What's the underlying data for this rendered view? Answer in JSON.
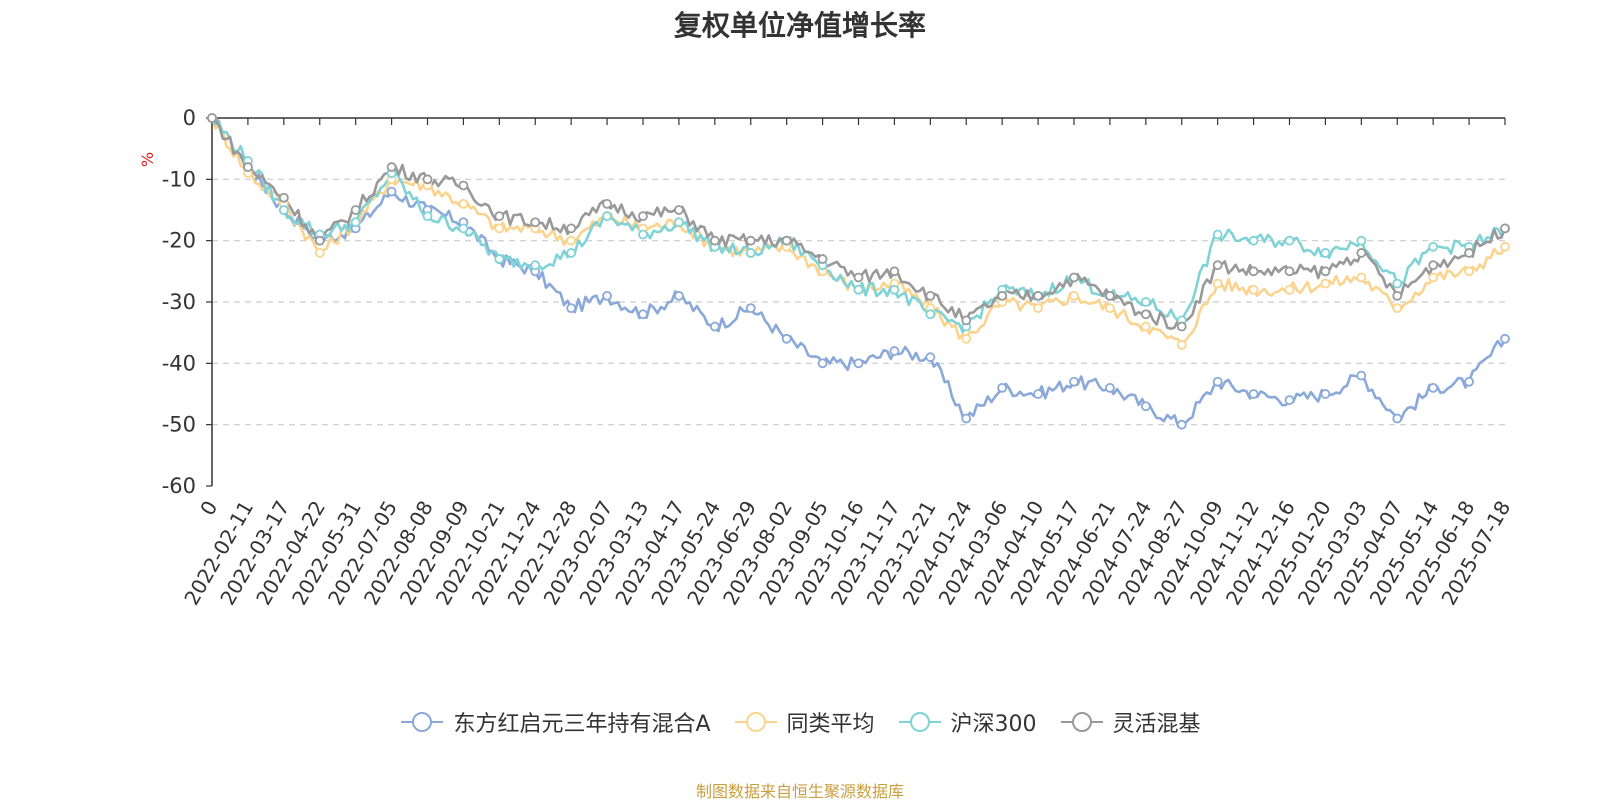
{
  "chart_data": {
    "type": "line",
    "title": "复权单位净值增长率",
    "ylabel": "%",
    "ylim": [
      -60,
      0
    ],
    "yticks": [
      0,
      -10,
      -20,
      -30,
      -40,
      -50,
      -60
    ],
    "grid": true,
    "legend_position": "bottom",
    "x": [
      "0",
      "2022-02-11",
      "2022-03-17",
      "2022-04-22",
      "2022-05-31",
      "2022-07-05",
      "2022-08-08",
      "2022-09-09",
      "2022-10-21",
      "2022-11-24",
      "2022-12-28",
      "2023-02-07",
      "2023-03-13",
      "2023-04-17",
      "2023-05-24",
      "2023-06-29",
      "2023-08-02",
      "2023-09-05",
      "2023-10-16",
      "2023-11-17",
      "2023-12-21",
      "2024-01-24",
      "2024-03-06",
      "2024-04-10",
      "2024-05-17",
      "2024-06-21",
      "2024-07-24",
      "2024-08-27",
      "2024-10-09",
      "2024-11-12",
      "2024-12-16",
      "2025-01-20",
      "2025-03-03",
      "2025-04-07",
      "2025-05-14",
      "2025-06-18",
      "2025-07-18"
    ],
    "series": [
      {
        "name": "东方红启元三年持有混合A",
        "color": "#8aa9d8",
        "values": [
          0,
          -8,
          -15,
          -20,
          -18,
          -12,
          -15,
          -17,
          -23,
          -25,
          -31,
          -29,
          -32,
          -29,
          -34,
          -31,
          -36,
          -40,
          -40,
          -38,
          -39,
          -49,
          -44,
          -45,
          -43,
          -44,
          -47,
          -50,
          -43,
          -45,
          -46,
          -45,
          -42,
          -49,
          -44,
          -43,
          -36
        ]
      },
      {
        "name": "同类平均",
        "color": "#fbd38d",
        "values": [
          0,
          -9,
          -14,
          -22,
          -17,
          -10,
          -11,
          -14,
          -18,
          -18,
          -20,
          -16,
          -18,
          -17,
          -21,
          -22,
          -21,
          -25,
          -28,
          -27,
          -31,
          -36,
          -30,
          -31,
          -29,
          -31,
          -34,
          -37,
          -27,
          -28,
          -28,
          -27,
          -26,
          -31,
          -26,
          -25,
          -21
        ]
      },
      {
        "name": "沪深300",
        "color": "#7fd3d6",
        "values": [
          0,
          -7,
          -15,
          -19,
          -17,
          -9,
          -16,
          -18,
          -23,
          -24,
          -22,
          -16,
          -19,
          -17,
          -21,
          -22,
          -20,
          -24,
          -28,
          -28,
          -32,
          -34,
          -28,
          -29,
          -26,
          -29,
          -30,
          -33,
          -19,
          -20,
          -20,
          -22,
          -20,
          -27,
          -21,
          -21,
          -18
        ]
      },
      {
        "name": "灵活混基",
        "color": "#999999",
        "values": [
          0,
          -8,
          -13,
          -20,
          -15,
          -8,
          -10,
          -11,
          -16,
          -17,
          -18,
          -14,
          -16,
          -15,
          -20,
          -20,
          -20,
          -23,
          -26,
          -25,
          -29,
          -33,
          -29,
          -29,
          -26,
          -29,
          -32,
          -34,
          -24,
          -25,
          -25,
          -25,
          -22,
          -29,
          -24,
          -22,
          -18
        ]
      }
    ]
  },
  "footer": "制图数据来自恒生聚源数据库"
}
